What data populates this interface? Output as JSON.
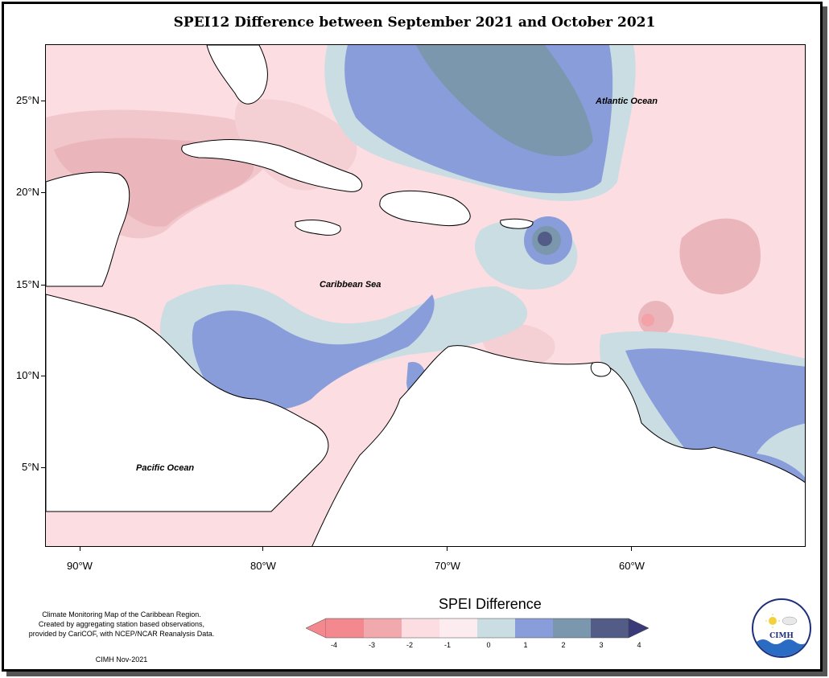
{
  "title": "SPEI12 Difference between September 2021 and October 2021",
  "map": {
    "labels": {
      "atlantic": "Atlantic Ocean",
      "caribbean": "Caribbean Sea",
      "pacific": "Pacific Ocean"
    },
    "y_axis_ticks": [
      "25°N",
      "20°N",
      "15°N",
      "10°N",
      "5°N"
    ],
    "x_axis_ticks": [
      "90°W",
      "80°W",
      "70°W",
      "60°W"
    ]
  },
  "footer": {
    "note_lines": [
      "Climate Monitoring Map of the Caribbean Region.",
      "Created by aggregating station based observations,",
      "provided by CariCOF, with NCEP/NCAR Reanalysis Data."
    ],
    "date": "CIMH Nov-2021"
  },
  "legend": {
    "title": "SPEI Difference",
    "ticks": [
      "-4",
      "-3",
      "-2",
      "-1",
      "0",
      "1",
      "2",
      "3",
      "4"
    ],
    "colors": [
      "#f4888f",
      "#f2a9ae",
      "#e9bcc0",
      "#fbdde2",
      "#fcecef",
      "#c9dde2",
      "#8a9ddb",
      "#7b97ad",
      "#525c87",
      "#3a3a78"
    ]
  },
  "logo": {
    "text": "CIMH"
  },
  "colors": {
    "neg_strong": "#f2a9ae",
    "neg_mid": "#e9bcc0",
    "neg_light": "#fbdde2",
    "neutral": "#fcecef",
    "pos_light": "#c9dde2",
    "pos_mid": "#8a9ddb",
    "pos_strong": "#7b97ad",
    "pos_darker": "#525c87"
  }
}
